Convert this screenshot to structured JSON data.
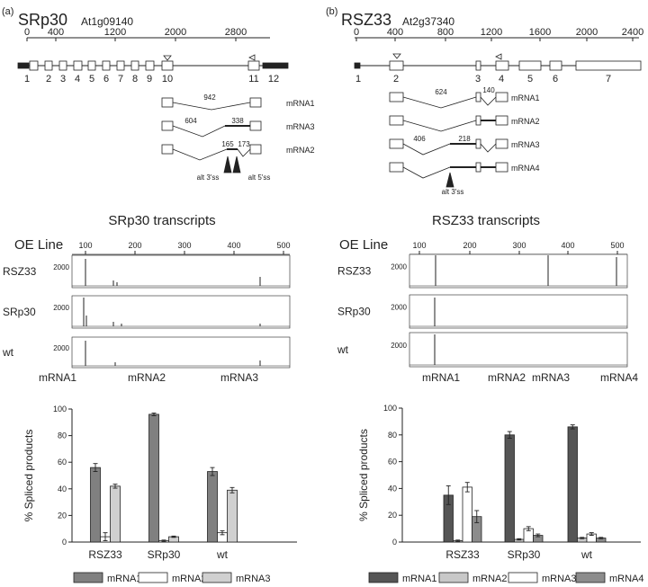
{
  "panels": [
    {
      "letter": "(a)",
      "gene": "SRp30",
      "locus": "At1g09140",
      "gene_axis_ticks": [
        "0",
        "400",
        "1200",
        "2000",
        "2800"
      ],
      "exon_numbers": [
        "1",
        "2",
        "3",
        "4",
        "5",
        "6",
        "7",
        "8",
        "9",
        "10",
        "11",
        "12"
      ],
      "isoforms": [
        {
          "name": "mRNA1",
          "intron_labels": [
            "942"
          ]
        },
        {
          "name": "mRNA3",
          "intron_labels": [
            "604",
            "338"
          ]
        },
        {
          "name": "mRNA2",
          "intron_labels": [
            "165",
            "173"
          ]
        }
      ],
      "site_labels": [
        "alt 3'ss",
        "alt 5'ss"
      ],
      "transcripts_title": "SRp30 transcripts",
      "oe_label": "OE Line",
      "trace_axis_ticks": [
        "100",
        "200",
        "300",
        "400",
        "500"
      ],
      "lines": [
        "RSZ33",
        "SRp30",
        "wt"
      ],
      "y_tick": "2000",
      "peak_labels": [
        "mRNA1",
        "mRNA2",
        "mRNA3"
      ]
    },
    {
      "letter": "(b)",
      "gene": "RSZ33",
      "locus": "At2g37340",
      "gene_axis_ticks": [
        "0",
        "400",
        "800",
        "1200",
        "1600",
        "2000",
        "2400"
      ],
      "exon_numbers": [
        "1",
        "2",
        "3",
        "4",
        "5",
        "6",
        "7"
      ],
      "isoforms": [
        {
          "name": "mRNA1",
          "intron_labels": [
            "624",
            "140"
          ]
        },
        {
          "name": "mRNA2",
          "intron_labels": []
        },
        {
          "name": "mRNA3",
          "intron_labels": [
            "406",
            "218"
          ]
        },
        {
          "name": "mRNA4",
          "intron_labels": []
        }
      ],
      "site_labels": [
        "alt 3'ss"
      ],
      "transcripts_title": "RSZ33 transcripts",
      "oe_label": "OE Line",
      "trace_axis_ticks": [
        "100",
        "200",
        "300",
        "400",
        "500"
      ],
      "lines": [
        "RSZ33",
        "SRp30",
        "wt"
      ],
      "y_tick": "2000",
      "peak_labels": [
        "mRNA1",
        "mRNA2",
        "mRNA3",
        "mRNA4"
      ]
    }
  ],
  "chart_data": [
    {
      "type": "bar",
      "ylabel": "% Spliced products",
      "ylim": [
        0,
        100
      ],
      "yticks": [
        "0",
        "20",
        "40",
        "60",
        "80",
        "100"
      ],
      "categories": [
        "RSZ33",
        "SRp30",
        "wt"
      ],
      "series": [
        {
          "name": "mRNA1",
          "color": "#808080",
          "values": [
            56,
            96,
            53
          ],
          "errors": [
            3,
            1,
            3
          ]
        },
        {
          "name": "mRNA2",
          "color": "#ffffff",
          "values": [
            4,
            1,
            7
          ],
          "errors": [
            3,
            0.5,
            1.5
          ]
        },
        {
          "name": "mRNA3",
          "color": "#d0d0d0",
          "values": [
            42,
            4,
            39
          ],
          "errors": [
            1.5,
            0.5,
            2
          ]
        }
      ],
      "grid": false,
      "legend": "bottom"
    },
    {
      "type": "bar",
      "ylabel": "% Spliced products",
      "ylim": [
        0,
        100
      ],
      "yticks": [
        "0",
        "20",
        "40",
        "60",
        "80",
        "100"
      ],
      "categories": [
        "RSZ33",
        "SRp30",
        "wt"
      ],
      "series": [
        {
          "name": "mRNA1",
          "color": "#555555",
          "values": [
            35,
            80,
            86
          ],
          "errors": [
            7,
            2.5,
            1.5
          ]
        },
        {
          "name": "mRNA2",
          "color": "#c8c8c8",
          "values": [
            1,
            2,
            3
          ],
          "errors": [
            0.5,
            0.5,
            0.5
          ]
        },
        {
          "name": "mRNA3",
          "color": "#ffffff",
          "values": [
            41,
            10,
            6
          ],
          "errors": [
            3.5,
            1.5,
            1
          ]
        },
        {
          "name": "mRNA4",
          "color": "#8c8c8c",
          "values": [
            19,
            5,
            3
          ],
          "errors": [
            4.5,
            1,
            0.5
          ]
        }
      ],
      "grid": false,
      "legend": "bottom"
    }
  ]
}
